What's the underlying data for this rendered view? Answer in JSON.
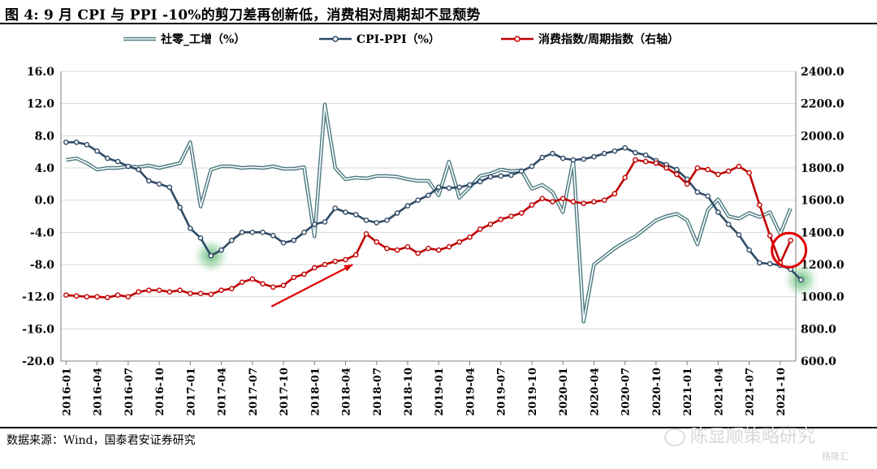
{
  "title": "图 4:  9 月 CPI 与 PPI -10%的剪刀差再创新低，消费相对周期却不显颓势",
  "source": "数据来源：Wind，国泰君安证券研究",
  "watermark": "陈显顺策略研究",
  "watermark2": "格隆汇",
  "chart_data": {
    "type": "line",
    "left_axis": {
      "min": -20,
      "max": 16,
      "step": 4,
      "ticks": [
        "16.0",
        "12.0",
        "8.0",
        "4.0",
        "0.0",
        "-4.0",
        "-8.0",
        "-12.0",
        "-16.0",
        "-20.0"
      ]
    },
    "right_axis": {
      "min": 600,
      "max": 2400,
      "step": 200,
      "ticks": [
        "2400.0",
        "2200.0",
        "2000.0",
        "1800.0",
        "1600.0",
        "1400.0",
        "1200.0",
        "1000.0",
        "800.0",
        "600.0"
      ]
    },
    "x_ticks": [
      "2016-01",
      "2016-04",
      "2016-07",
      "2016-10",
      "2017-01",
      "2017-04",
      "2017-07",
      "2017-10",
      "2018-01",
      "2018-04",
      "2018-07",
      "2018-10",
      "2019-01",
      "2019-04",
      "2019-07",
      "2019-10",
      "2020-01",
      "2020-04",
      "2020-07",
      "2020-10",
      "2021-01",
      "2021-04",
      "2021-07",
      "2021-10"
    ],
    "legend": [
      "社零_工增（%）",
      "CPI-PPI（%）",
      "消费指数/周期指数（右轴）"
    ],
    "series": [
      {
        "name": "社零_工增（%）",
        "axis": "left",
        "color": "#7ba3a8",
        "values": [
          5.0,
          5.2,
          4.6,
          3.8,
          4.0,
          4.0,
          4.2,
          4.1,
          4.3,
          4.0,
          4.3,
          4.6,
          7.2,
          -0.8,
          3.8,
          4.2,
          4.2,
          4.0,
          4.1,
          4.0,
          4.2,
          3.9,
          3.9,
          4.1,
          -4.5,
          11.9,
          4.0,
          2.6,
          2.8,
          2.7,
          3.0,
          3.0,
          2.9,
          2.6,
          2.4,
          2.4,
          0.6,
          4.8,
          0.3,
          1.6,
          3.0,
          3.3,
          3.8,
          3.6,
          3.7,
          1.4,
          1.9,
          1.0,
          -1.5,
          5.0,
          -15.1,
          -8.0,
          -7.0,
          -6.0,
          -5.2,
          -4.5,
          -3.5,
          -2.5,
          -2.0,
          -1.7,
          -2.5,
          -5.5,
          -1.2,
          0.1,
          -2.0,
          -2.3,
          -1.6,
          -2.1,
          -1.5,
          -4.2,
          -1.0
        ]
      },
      {
        "name": "CPI-PPI（%）",
        "axis": "left",
        "color": "#2e4a66",
        "values": [
          7.2,
          7.2,
          6.9,
          6.1,
          5.2,
          4.8,
          4.2,
          3.8,
          2.4,
          2.0,
          1.6,
          -0.9,
          -3.5,
          -4.7,
          -6.9,
          -6.2,
          -5.0,
          -4.0,
          -4.0,
          -4.0,
          -4.4,
          -5.3,
          -5.0,
          -4.0,
          -3.0,
          -2.7,
          -1.0,
          -1.5,
          -1.8,
          -2.5,
          -2.8,
          -2.5,
          -1.6,
          -0.7,
          0.0,
          0.6,
          1.6,
          1.5,
          1.6,
          1.9,
          2.3,
          2.9,
          3.0,
          3.1,
          3.6,
          4.2,
          5.3,
          5.8,
          5.2,
          5.0,
          5.1,
          5.4,
          5.8,
          6.1,
          6.5,
          5.9,
          5.6,
          4.9,
          4.4,
          3.8,
          2.6,
          1.0,
          0.5,
          -1.5,
          -3.0,
          -4.3,
          -6.2,
          -7.8,
          -7.9,
          -8.1,
          -8.6,
          -9.9
        ]
      },
      {
        "name": "消费指数/周期指数（右轴）",
        "axis": "right",
        "color": "#c00000",
        "values": [
          1010,
          1005,
          1000,
          1000,
          995,
          1010,
          1000,
          1030,
          1040,
          1040,
          1030,
          1040,
          1020,
          1020,
          1015,
          1040,
          1050,
          1090,
          1110,
          1080,
          1060,
          1070,
          1120,
          1140,
          1180,
          1200,
          1220,
          1230,
          1260,
          1390,
          1340,
          1300,
          1290,
          1310,
          1270,
          1300,
          1290,
          1310,
          1340,
          1370,
          1420,
          1450,
          1480,
          1500,
          1520,
          1570,
          1610,
          1590,
          1610,
          1590,
          1580,
          1590,
          1600,
          1640,
          1740,
          1850,
          1840,
          1830,
          1800,
          1760,
          1700,
          1800,
          1790,
          1760,
          1780,
          1810,
          1770,
          1570,
          1380,
          1210,
          1350
        ]
      }
    ],
    "highlights": [
      {
        "series": "CPI-PPI（%）",
        "index": 14,
        "kind": "green-glow"
      },
      {
        "series": "CPI-PPI（%）",
        "index": 71,
        "kind": "green-glow"
      },
      {
        "series": "消费指数/周期指数（右轴）",
        "index": 70,
        "kind": "red-circle"
      }
    ],
    "arrow": {
      "from_index": 20,
      "to_index": 28,
      "kind": "red-arrow"
    },
    "grid": true,
    "legend_position": "top"
  }
}
